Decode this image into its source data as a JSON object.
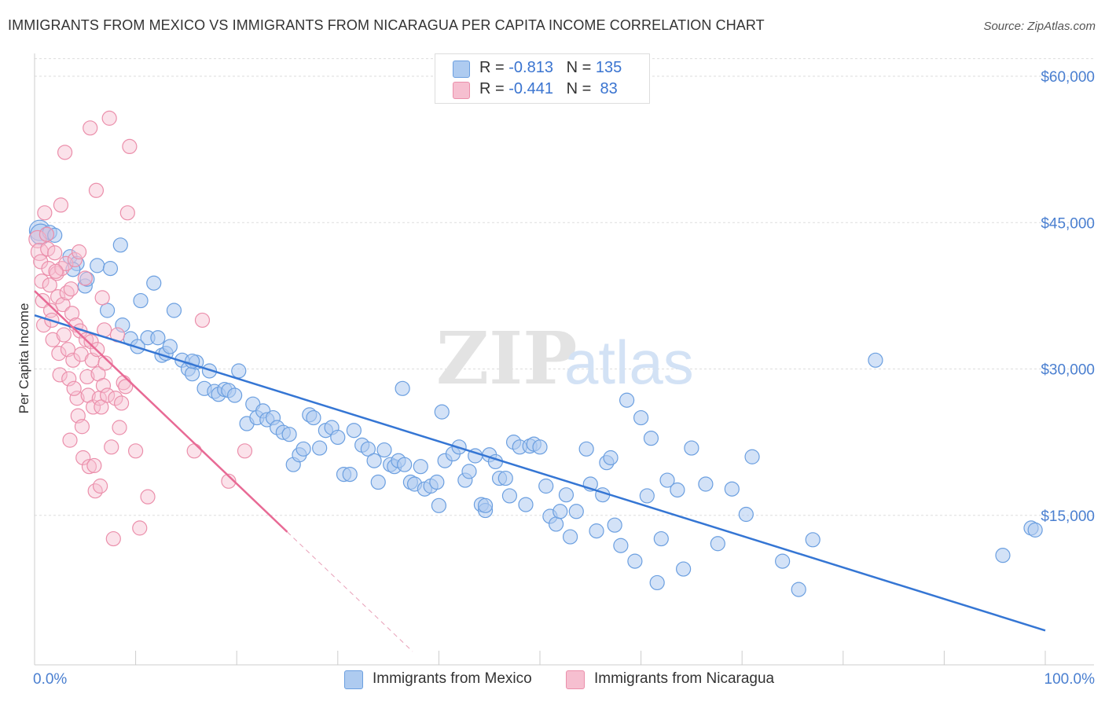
{
  "title": "IMMIGRANTS FROM MEXICO VS IMMIGRANTS FROM NICARAGUA PER CAPITA INCOME CORRELATION CHART",
  "source": "Source: ZipAtlas.com",
  "watermark": {
    "zip": "ZIP",
    "atlas": "atlas"
  },
  "colors": {
    "mexico_fill": "#aecbf0",
    "mexico_stroke": "#6b9fe0",
    "mexico_line": "#3576d4",
    "nicaragua_fill": "#f6bfd0",
    "nicaragua_stroke": "#eb8fab",
    "nicaragua_line": "#e86a95",
    "axis_label": "#4a7fd0",
    "grid": "#dddddd"
  },
  "legend": {
    "mexico": {
      "r_label": "R = ",
      "r_value": "-0.813",
      "n_label": "N = ",
      "n_value": "135"
    },
    "nicaragua": {
      "r_label": "R = ",
      "r_value": "-0.441",
      "n_label": "N = ",
      "n_value": " 83"
    }
  },
  "chart_data": {
    "type": "scatter",
    "title": "IMMIGRANTS FROM MEXICO VS IMMIGRANTS FROM NICARAGUA PER CAPITA INCOME CORRELATION CHART",
    "xlabel": "",
    "ylabel": "Per Capita Income",
    "x_tick_labels": [
      "0.0%",
      "100.0%"
    ],
    "y_tick_labels": [
      "$15,000",
      "$30,000",
      "$45,000",
      "$60,000"
    ],
    "y_ticks": [
      15000,
      30000,
      45000,
      60000
    ],
    "xlim": [
      0,
      100
    ],
    "ylim": [
      0,
      62000
    ],
    "grid": true,
    "legend_position": "bottom",
    "series": [
      {
        "name": "Immigrants from Mexico",
        "r": -0.813,
        "n": 135,
        "trend": {
          "x": [
            0,
            100
          ],
          "y": [
            35500,
            3200
          ]
        },
        "points": [
          [
            0.5,
            44200
          ],
          [
            0.6,
            43800
          ],
          [
            1.2,
            43800
          ],
          [
            1.5,
            44000
          ],
          [
            2.0,
            43700
          ],
          [
            3.5,
            41500
          ],
          [
            4.2,
            40800
          ],
          [
            3.8,
            40200
          ],
          [
            5.0,
            38500
          ],
          [
            5.2,
            39200
          ],
          [
            6.2,
            40600
          ],
          [
            7.5,
            40300
          ],
          [
            8.5,
            42700
          ],
          [
            7.2,
            36000
          ],
          [
            8.7,
            34500
          ],
          [
            9.5,
            33100
          ],
          [
            10.2,
            32300
          ],
          [
            10.5,
            37000
          ],
          [
            11.2,
            33200
          ],
          [
            12.2,
            33200
          ],
          [
            11.8,
            38800
          ],
          [
            12.6,
            31400
          ],
          [
            13.0,
            31600
          ],
          [
            13.4,
            32300
          ],
          [
            13.8,
            36000
          ],
          [
            14.6,
            30900
          ],
          [
            15.2,
            30000
          ],
          [
            15.6,
            29500
          ],
          [
            16.0,
            30700
          ],
          [
            16.8,
            28000
          ],
          [
            17.3,
            29800
          ],
          [
            17.8,
            27700
          ],
          [
            18.2,
            27400
          ],
          [
            18.8,
            27900
          ],
          [
            19.2,
            27800
          ],
          [
            19.8,
            27300
          ],
          [
            20.2,
            29800
          ],
          [
            21.0,
            24400
          ],
          [
            21.6,
            26400
          ],
          [
            22.0,
            25000
          ],
          [
            22.6,
            25700
          ],
          [
            23.0,
            24800
          ],
          [
            23.6,
            25000
          ],
          [
            24.0,
            24000
          ],
          [
            24.6,
            23500
          ],
          [
            25.2,
            23300
          ],
          [
            25.6,
            20200
          ],
          [
            26.2,
            21200
          ],
          [
            26.6,
            21800
          ],
          [
            27.2,
            25300
          ],
          [
            27.6,
            25000
          ],
          [
            28.2,
            21900
          ],
          [
            28.8,
            23700
          ],
          [
            29.4,
            24000
          ],
          [
            30.0,
            23000
          ],
          [
            30.6,
            19200
          ],
          [
            31.2,
            19200
          ],
          [
            31.6,
            23700
          ],
          [
            32.4,
            22200
          ],
          [
            33.0,
            21800
          ],
          [
            33.6,
            20600
          ],
          [
            34.0,
            18400
          ],
          [
            34.6,
            21700
          ],
          [
            35.2,
            20200
          ],
          [
            35.6,
            20000
          ],
          [
            36.0,
            20600
          ],
          [
            36.6,
            20200
          ],
          [
            37.2,
            18400
          ],
          [
            37.6,
            18200
          ],
          [
            38.2,
            20000
          ],
          [
            38.6,
            17700
          ],
          [
            39.2,
            18000
          ],
          [
            39.8,
            18400
          ],
          [
            40.0,
            16000
          ],
          [
            40.6,
            20600
          ],
          [
            41.4,
            21300
          ],
          [
            42.0,
            22000
          ],
          [
            42.6,
            18600
          ],
          [
            43.0,
            19500
          ],
          [
            43.6,
            21100
          ],
          [
            44.2,
            16100
          ],
          [
            44.6,
            15500
          ],
          [
            45.0,
            21200
          ],
          [
            45.6,
            20500
          ],
          [
            46.0,
            18800
          ],
          [
            46.6,
            18800
          ],
          [
            47.0,
            17000
          ],
          [
            47.4,
            22500
          ],
          [
            48.0,
            22000
          ],
          [
            48.6,
            16100
          ],
          [
            49.0,
            22100
          ],
          [
            49.4,
            22300
          ],
          [
            50.0,
            22000
          ],
          [
            50.6,
            18000
          ],
          [
            51.0,
            14900
          ],
          [
            51.6,
            14100
          ],
          [
            52.0,
            15400
          ],
          [
            52.6,
            17100
          ],
          [
            53.0,
            12800
          ],
          [
            53.6,
            15400
          ],
          [
            54.6,
            21800
          ],
          [
            55.0,
            18200
          ],
          [
            55.6,
            13400
          ],
          [
            56.2,
            17100
          ],
          [
            56.6,
            20400
          ],
          [
            57.4,
            14000
          ],
          [
            58.0,
            11900
          ],
          [
            58.6,
            26800
          ],
          [
            59.4,
            10300
          ],
          [
            60.0,
            25000
          ],
          [
            60.6,
            17000
          ],
          [
            61.0,
            22900
          ],
          [
            61.6,
            8100
          ],
          [
            62.0,
            12600
          ],
          [
            62.6,
            18600
          ],
          [
            63.6,
            17600
          ],
          [
            64.2,
            9500
          ],
          [
            65.0,
            21900
          ],
          [
            66.4,
            18200
          ],
          [
            67.6,
            12100
          ],
          [
            69.0,
            17700
          ],
          [
            70.4,
            15100
          ],
          [
            71.0,
            21000
          ],
          [
            74.0,
            10300
          ],
          [
            75.6,
            7400
          ],
          [
            77.0,
            12500
          ],
          [
            83.2,
            30900
          ],
          [
            95.8,
            10900
          ],
          [
            98.6,
            13700
          ],
          [
            99.0,
            13500
          ],
          [
            36.4,
            28000
          ],
          [
            40.3,
            25600
          ],
          [
            44.6,
            16000
          ],
          [
            57.0,
            20900
          ],
          [
            15.6,
            30800
          ]
        ]
      },
      {
        "name": "Immigrants from Nicaragua",
        "r": -0.441,
        "n": 83,
        "trend": {
          "x": [
            0,
            25
          ],
          "y": [
            38000,
            13300
          ]
        },
        "points": [
          [
            0.3,
            43300
          ],
          [
            0.5,
            42000
          ],
          [
            0.6,
            41000
          ],
          [
            0.7,
            39000
          ],
          [
            0.8,
            37000
          ],
          [
            0.9,
            34500
          ],
          [
            1.0,
            46000
          ],
          [
            1.2,
            43800
          ],
          [
            1.3,
            42300
          ],
          [
            1.4,
            40300
          ],
          [
            1.5,
            38600
          ],
          [
            1.6,
            36000
          ],
          [
            1.7,
            35000
          ],
          [
            1.8,
            33000
          ],
          [
            2.0,
            41900
          ],
          [
            2.2,
            39800
          ],
          [
            2.3,
            37400
          ],
          [
            2.4,
            31600
          ],
          [
            2.5,
            29400
          ],
          [
            2.6,
            46800
          ],
          [
            2.7,
            40300
          ],
          [
            2.8,
            36600
          ],
          [
            2.9,
            33500
          ],
          [
            3.0,
            52200
          ],
          [
            3.1,
            40800
          ],
          [
            3.2,
            37800
          ],
          [
            3.3,
            32000
          ],
          [
            3.4,
            29000
          ],
          [
            3.5,
            22700
          ],
          [
            3.6,
            38200
          ],
          [
            3.7,
            35700
          ],
          [
            3.8,
            30900
          ],
          [
            4.0,
            41200
          ],
          [
            4.1,
            34500
          ],
          [
            4.2,
            27000
          ],
          [
            4.3,
            25200
          ],
          [
            4.4,
            42000
          ],
          [
            4.5,
            33900
          ],
          [
            4.6,
            31500
          ],
          [
            4.7,
            24100
          ],
          [
            4.8,
            20900
          ],
          [
            5.0,
            39300
          ],
          [
            5.1,
            33000
          ],
          [
            5.2,
            29200
          ],
          [
            5.3,
            27300
          ],
          [
            5.4,
            20000
          ],
          [
            5.5,
            54700
          ],
          [
            5.6,
            32800
          ],
          [
            5.7,
            30900
          ],
          [
            5.8,
            26100
          ],
          [
            5.9,
            20100
          ],
          [
            6.0,
            17500
          ],
          [
            6.1,
            48300
          ],
          [
            6.2,
            32000
          ],
          [
            6.3,
            29500
          ],
          [
            6.4,
            27000
          ],
          [
            6.5,
            18000
          ],
          [
            6.6,
            26100
          ],
          [
            6.7,
            37300
          ],
          [
            6.8,
            28300
          ],
          [
            7.0,
            30600
          ],
          [
            7.2,
            27300
          ],
          [
            7.4,
            55700
          ],
          [
            7.6,
            22000
          ],
          [
            7.8,
            12600
          ],
          [
            8.0,
            27000
          ],
          [
            8.2,
            33500
          ],
          [
            8.4,
            24000
          ],
          [
            8.6,
            26500
          ],
          [
            8.8,
            28600
          ],
          [
            9.2,
            46000
          ],
          [
            9.4,
            52800
          ],
          [
            10.0,
            21600
          ],
          [
            10.4,
            13700
          ],
          [
            11.2,
            16900
          ],
          [
            15.8,
            21600
          ],
          [
            16.6,
            35000
          ],
          [
            19.2,
            18500
          ],
          [
            20.8,
            21600
          ],
          [
            2.1,
            40000
          ],
          [
            6.9,
            34000
          ],
          [
            9.0,
            28200
          ],
          [
            3.9,
            28000
          ]
        ]
      }
    ]
  },
  "bottom_legend": {
    "mexico": "Immigrants from Mexico",
    "nicaragua": "Immigrants from Nicaragua"
  }
}
